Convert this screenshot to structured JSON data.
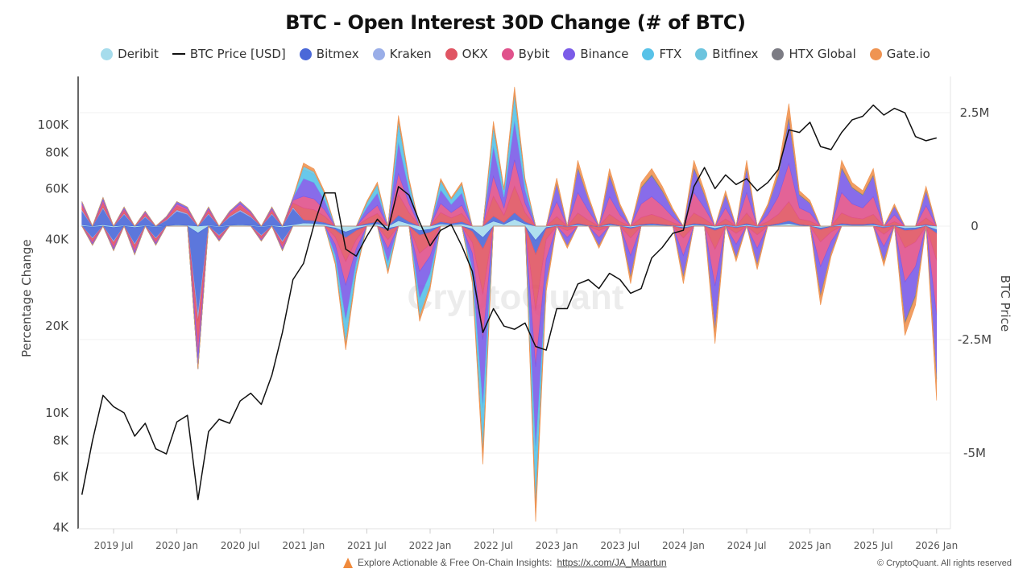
{
  "chart_data": {
    "type": "area",
    "title": "BTC - Open Interest 30D Change (# of BTC)",
    "ylabel_left": "Percentage Change",
    "ylabel_right": "BTC Price",
    "left_axis": {
      "scale": "log",
      "range": [
        4000,
        147000
      ],
      "ticks": [
        {
          "v": 4000,
          "label": "4K"
        },
        {
          "v": 6000,
          "label": "6K"
        },
        {
          "v": 8000,
          "label": "8K"
        },
        {
          "v": 10000,
          "label": "10K"
        },
        {
          "v": 20000,
          "label": "20K"
        },
        {
          "v": 40000,
          "label": "40K"
        },
        {
          "v": 60000,
          "label": "60K"
        },
        {
          "v": 80000,
          "label": "80K"
        },
        {
          "v": 100000,
          "label": "100K"
        }
      ]
    },
    "right_axis": {
      "scale": "linear",
      "unit": "M",
      "range": [
        -6.67,
        3.3
      ],
      "ticks": [
        {
          "v": 2.5,
          "label": "2.5M"
        },
        {
          "v": 0,
          "label": "0"
        },
        {
          "v": -2.5,
          "label": "-2.5M"
        },
        {
          "v": -5,
          "label": "-5M"
        }
      ]
    },
    "x_ticks": [
      {
        "date": "2019-07",
        "label": "2019 Jul"
      },
      {
        "date": "2020-01",
        "label": "2020 Jan"
      },
      {
        "date": "2020-07",
        "label": "2020 Jul"
      },
      {
        "date": "2021-01",
        "label": "2021 Jan"
      },
      {
        "date": "2021-07",
        "label": "2021 Jul"
      },
      {
        "date": "2022-01",
        "label": "2022 Jan"
      },
      {
        "date": "2022-07",
        "label": "2022 Jul"
      },
      {
        "date": "2023-01",
        "label": "2023 Jan"
      },
      {
        "date": "2023-07",
        "label": "2023 Jul"
      },
      {
        "date": "2024-01",
        "label": "2024 Jan"
      },
      {
        "date": "2024-07",
        "label": "2024 Jul"
      },
      {
        "date": "2025-01",
        "label": "2025 Jan"
      },
      {
        "date": "2025-07",
        "label": "2025 Jul"
      },
      {
        "date": "2026-01",
        "label": "2026 Jan"
      }
    ],
    "grid": "horizontal, faint",
    "legend_position": "top",
    "x": [
      "2019-04",
      "2019-05",
      "2019-06",
      "2019-07",
      "2019-08",
      "2019-09",
      "2019-10",
      "2019-11",
      "2019-12",
      "2020-01",
      "2020-02",
      "2020-03",
      "2020-04",
      "2020-05",
      "2020-06",
      "2020-07",
      "2020-08",
      "2020-09",
      "2020-10",
      "2020-11",
      "2020-12",
      "2021-01",
      "2021-02",
      "2021-03",
      "2021-04",
      "2021-05",
      "2021-06",
      "2021-07",
      "2021-08",
      "2021-09",
      "2021-10",
      "2021-11",
      "2021-12",
      "2022-01",
      "2022-02",
      "2022-03",
      "2022-04",
      "2022-05",
      "2022-06",
      "2022-07",
      "2022-08",
      "2022-09",
      "2022-10",
      "2022-11",
      "2022-12",
      "2023-01",
      "2023-02",
      "2023-03",
      "2023-04",
      "2023-05",
      "2023-06",
      "2023-07",
      "2023-08",
      "2023-09",
      "2023-10",
      "2023-11",
      "2023-12",
      "2024-01",
      "2024-02",
      "2024-03",
      "2024-04",
      "2024-05",
      "2024-06",
      "2024-07",
      "2024-08",
      "2024-09",
      "2024-10",
      "2024-11",
      "2024-12",
      "2025-01",
      "2025-02",
      "2025-03",
      "2025-04",
      "2025-05",
      "2025-06",
      "2025-07",
      "2025-08",
      "2025-09",
      "2025-10",
      "2025-11",
      "2025-12",
      "2026-01"
    ],
    "price": {
      "name": "BTC Price [USD]",
      "color": "#111111",
      "axis": "left",
      "values": [
        5200,
        8000,
        11500,
        10500,
        10000,
        8300,
        9200,
        7500,
        7200,
        9300,
        9800,
        5000,
        8600,
        9500,
        9200,
        11000,
        11700,
        10700,
        13500,
        19000,
        29000,
        33000,
        45000,
        58000,
        58000,
        37000,
        35000,
        41000,
        47000,
        43000,
        61000,
        57000,
        46000,
        38000,
        43000,
        45000,
        38000,
        31000,
        19000,
        23000,
        20000,
        19500,
        20500,
        17000,
        16500,
        23000,
        23000,
        28000,
        29000,
        27000,
        30500,
        29000,
        26000,
        27000,
        34500,
        37500,
        42000,
        43000,
        61000,
        71000,
        60000,
        67000,
        62000,
        65000,
        59000,
        63000,
        70000,
        96000,
        94000,
        102000,
        84000,
        82000,
        94000,
        104000,
        107000,
        117000,
        108000,
        114000,
        110000,
        91000,
        88000,
        90000
      ]
    },
    "series": [
      {
        "name": "Deribit",
        "color": "#a6dcec",
        "values": [
          0.03,
          -0.02,
          0.03,
          -0.03,
          0.02,
          -0.03,
          0.02,
          -0.02,
          0.01,
          0.03,
          0.02,
          -0.15,
          0.02,
          -0.02,
          0.02,
          0.03,
          0.02,
          -0.02,
          0.02,
          -0.03,
          0.03,
          0.07,
          0.06,
          0.04,
          -0.04,
          -0.13,
          -0.05,
          0.03,
          0.05,
          -0.05,
          0.12,
          0.05,
          -0.1,
          -0.07,
          0.05,
          0.03,
          0.05,
          -0.06,
          -0.25,
          0.11,
          0.04,
          0.15,
          0.05,
          -0.31,
          -0.03,
          0.02,
          -0.01,
          0.03,
          0.01,
          -0.01,
          0.03,
          0.01,
          -0.03,
          0.02,
          0.03,
          0.02,
          0.01,
          -0.03,
          0.03,
          0.02,
          -0.05,
          0.02,
          -0.02,
          0.03,
          -0.02,
          0.01,
          0.03,
          0.06,
          0.02,
          0.01,
          -0.04,
          -0.01,
          0.03,
          0.02,
          0.02,
          0.03,
          -0.02,
          0.01,
          -0.05,
          -0.04,
          0.02,
          -0.08
        ]
      },
      {
        "name": "Bitmex",
        "color": "#4a68d8",
        "values": [
          0.3,
          -0.24,
          0.36,
          -0.3,
          0.24,
          -0.36,
          0.18,
          -0.24,
          0.12,
          0.3,
          0.24,
          -1.8,
          0.24,
          -0.18,
          0.18,
          0.3,
          0.18,
          -0.18,
          0.24,
          -0.3,
          0.36,
          0.07,
          0.06,
          0.04,
          -0.04,
          -0.13,
          -0.05,
          0.03,
          0.05,
          -0.05,
          0.12,
          0.05,
          -0.1,
          -0.07,
          0.05,
          0.03,
          0.05,
          -0.06,
          -0.25,
          0.11,
          0.04,
          0.15,
          0.05,
          -0.31,
          -0.03,
          0.02,
          -0.01,
          0.03,
          0.01,
          -0.01,
          0.03,
          0.01,
          -0.03,
          0.02,
          0.03,
          0.02,
          0.01,
          -0.03,
          0.03,
          0.02,
          -0.05,
          0.02,
          -0.02,
          0.03,
          -0.02,
          0.01,
          0.03,
          0.06,
          0.02,
          0.01,
          -0.04,
          -0.01,
          0.03,
          0.02,
          0.02,
          0.03,
          -0.02,
          0.01,
          -0.05,
          -0.04,
          0.02,
          -0.08
        ]
      },
      {
        "name": "Kraken",
        "color": "#9aaee8",
        "values": [
          0.03,
          -0.02,
          0.03,
          -0.03,
          0.02,
          -0.03,
          0.02,
          -0.02,
          0.01,
          0.03,
          0.02,
          -0.15,
          0.02,
          -0.02,
          0.02,
          0.03,
          0.02,
          -0.02,
          0.02,
          -0.03,
          0.03,
          0,
          0,
          0,
          0,
          0,
          0,
          0,
          0,
          0,
          0,
          0,
          0,
          0,
          0,
          0,
          0,
          0,
          0,
          0,
          0,
          0,
          0,
          0,
          0,
          0,
          0,
          0,
          0,
          0,
          0,
          0,
          0,
          0,
          0,
          0,
          0,
          0,
          0,
          0,
          0,
          0,
          0,
          0,
          0,
          0,
          0,
          0,
          0,
          0,
          0,
          0,
          0,
          0,
          0,
          0,
          0,
          0,
          0,
          0,
          0,
          0
        ]
      },
      {
        "name": "OKX",
        "color": "#e05563",
        "values": [
          0.08,
          -0.06,
          0.09,
          -0.08,
          0.06,
          -0.09,
          0.05,
          -0.06,
          0.03,
          0.08,
          0.06,
          -0.45,
          0.06,
          -0.05,
          0.05,
          0.08,
          0.05,
          -0.05,
          0.06,
          -0.08,
          0.09,
          0.26,
          0.24,
          0.14,
          -0.16,
          -0.52,
          -0.2,
          0.1,
          0.18,
          -0.2,
          0.46,
          0.2,
          -0.4,
          -0.26,
          0.2,
          0.12,
          0.18,
          -0.24,
          -1.0,
          0.44,
          0.16,
          0.58,
          0.2,
          -1.24,
          -0.23,
          0.17,
          -0.08,
          0.23,
          0.11,
          -0.08,
          0.2,
          0.08,
          -0.2,
          0.15,
          0.2,
          0.14,
          0.06,
          -0.2,
          0.23,
          0.12,
          -0.41,
          0.12,
          -0.12,
          0.23,
          -0.15,
          0.08,
          0.2,
          0.42,
          0.12,
          0.09,
          -0.27,
          -0.11,
          0.23,
          0.15,
          0.12,
          0.2,
          -0.14,
          0.08,
          -0.38,
          -0.27,
          0.14,
          -0.6
        ]
      },
      {
        "name": "Bybit",
        "color": "#e0528c",
        "values": [
          0.05,
          -0.04,
          0.06,
          -0.05,
          0.04,
          -0.06,
          0.03,
          -0.04,
          0.02,
          0.05,
          0.04,
          -0.3,
          0.04,
          -0.03,
          0.03,
          0.05,
          0.03,
          -0.03,
          0.04,
          -0.05,
          0.06,
          0.26,
          0.24,
          0.14,
          -0.16,
          -0.52,
          -0.2,
          0.1,
          0.18,
          -0.2,
          0.46,
          0.2,
          -0.4,
          -0.26,
          0.2,
          0.12,
          0.18,
          -0.24,
          -1.0,
          0.44,
          0.16,
          0.58,
          0.2,
          -1.24,
          -0.45,
          0.33,
          -0.15,
          0.45,
          0.21,
          -0.15,
          0.39,
          0.15,
          -0.39,
          0.3,
          0.39,
          0.27,
          0.12,
          -0.39,
          0.45,
          0.24,
          -0.81,
          0.24,
          -0.24,
          0.45,
          -0.3,
          0.15,
          0.39,
          0.84,
          0.24,
          0.18,
          -0.54,
          -0.21,
          0.45,
          0.3,
          0.24,
          0.39,
          -0.27,
          0.15,
          -0.75,
          -0.54,
          0.27,
          -1.2
        ]
      },
      {
        "name": "Binance",
        "color": "#7b5ce8",
        "values": [
          0.05,
          -0.04,
          0.06,
          -0.05,
          0.04,
          -0.06,
          0.03,
          -0.04,
          0.02,
          0.05,
          0.04,
          -0.3,
          0.04,
          -0.03,
          0.03,
          0.05,
          0.03,
          -0.03,
          0.04,
          -0.05,
          0.06,
          0.39,
          0.36,
          0.21,
          -0.24,
          -0.78,
          -0.3,
          0.15,
          0.27,
          -0.3,
          0.69,
          0.3,
          -0.6,
          -0.39,
          0.3,
          0.18,
          0.27,
          -0.36,
          -1.5,
          0.66,
          0.24,
          0.87,
          0.3,
          -1.86,
          -0.53,
          0.39,
          -0.18,
          0.53,
          0.25,
          -0.18,
          0.46,
          0.18,
          -0.46,
          0.35,
          0.46,
          0.32,
          0.14,
          -0.46,
          0.53,
          0.28,
          -0.95,
          0.28,
          -0.28,
          0.53,
          -0.35,
          0.18,
          0.46,
          0.98,
          0.28,
          0.21,
          -0.63,
          -0.25,
          0.53,
          0.35,
          0.28,
          0.46,
          -0.32,
          0.18,
          -0.88,
          -0.63,
          0.32,
          -1.4
        ]
      },
      {
        "name": "FTX",
        "color": "#58c2e8",
        "values": [
          0,
          0,
          0,
          0,
          0,
          0,
          0,
          0,
          0,
          0,
          0,
          0,
          0,
          0,
          0,
          0,
          0,
          0,
          0,
          0,
          0,
          0.2,
          0.18,
          0.11,
          -0.12,
          -0.39,
          -0.15,
          0.08,
          0.14,
          -0.15,
          0.35,
          0.15,
          -0.3,
          -0.2,
          0.15,
          0.09,
          0.14,
          -0.18,
          -0.75,
          0.33,
          0.12,
          0.44,
          0.15,
          -0.93,
          0,
          0,
          0,
          0,
          0,
          0,
          0,
          0,
          0,
          0,
          0,
          0,
          0,
          0,
          0,
          0,
          0,
          0,
          0,
          0,
          0,
          0,
          0,
          0,
          0,
          0,
          0,
          0,
          0,
          0,
          0,
          0,
          0,
          0,
          0,
          0,
          0,
          0
        ]
      },
      {
        "name": "Bitfinex",
        "color": "#6cc4de",
        "values": [
          0,
          0,
          0,
          0,
          0,
          0,
          0,
          0,
          0,
          0,
          0,
          0,
          0,
          0,
          0,
          0,
          0,
          0,
          0,
          0,
          0,
          0.07,
          0.06,
          0.04,
          -0.04,
          -0.13,
          -0.05,
          0.03,
          0.05,
          -0.05,
          0.12,
          0.05,
          -0.1,
          -0.07,
          0.05,
          0.03,
          0.05,
          -0.06,
          -0.25,
          0.11,
          0.04,
          0.15,
          0.05,
          -0.31,
          0,
          0,
          0,
          0,
          0,
          0,
          0,
          0,
          0,
          0,
          0,
          0,
          0,
          0,
          0,
          0,
          0,
          0,
          0,
          0,
          0,
          0,
          0,
          0,
          0,
          0,
          0,
          0,
          0,
          0,
          0,
          0,
          0,
          0,
          0,
          0,
          0,
          0
        ]
      },
      {
        "name": "HTX Global",
        "color": "#7c7c84",
        "values": [
          0,
          0,
          0,
          0,
          0,
          0,
          0,
          0,
          0,
          0,
          0,
          0,
          0,
          0,
          0,
          0,
          0,
          0,
          0,
          0,
          0,
          0,
          0,
          0,
          0,
          0,
          0,
          0,
          0,
          0,
          0,
          0,
          0,
          0,
          0,
          0,
          0,
          0,
          0,
          0,
          0,
          0,
          0,
          0,
          -0.03,
          0.02,
          -0.01,
          0.03,
          0.01,
          -0.01,
          0.03,
          0.01,
          -0.03,
          0.02,
          0.03,
          0.02,
          0.01,
          -0.03,
          0.03,
          0.02,
          -0.05,
          0.02,
          -0.02,
          0.03,
          -0.02,
          0.01,
          0.03,
          0.06,
          0.02,
          0.01,
          -0.04,
          -0.01,
          0.03,
          0.02,
          0.02,
          0.03,
          -0.02,
          0.01,
          -0.05,
          -0.04,
          0.02,
          -0.08
        ]
      },
      {
        "name": "Gate.io",
        "color": "#ef9452",
        "values": [
          0,
          0,
          0,
          0,
          0,
          0,
          0,
          0,
          0,
          0,
          0,
          0,
          0,
          0,
          0,
          0,
          0,
          0,
          0,
          0,
          0,
          0.07,
          0.06,
          0.04,
          -0.04,
          -0.13,
          -0.05,
          0.03,
          0.05,
          -0.05,
          0.12,
          0.05,
          -0.1,
          -0.07,
          0.05,
          0.03,
          0.05,
          -0.06,
          -0.25,
          0.11,
          0.04,
          0.15,
          0.05,
          -0.31,
          -0.15,
          0.11,
          -0.05,
          0.15,
          0.07,
          -0.05,
          0.13,
          0.05,
          -0.13,
          0.1,
          0.13,
          0.09,
          0.04,
          -0.13,
          0.15,
          0.08,
          -0.27,
          0.08,
          -0.08,
          0.15,
          -0.1,
          0.05,
          0.13,
          0.28,
          0.08,
          0.06,
          -0.18,
          -0.07,
          0.15,
          0.1,
          0.08,
          0.13,
          -0.09,
          0.05,
          -0.25,
          -0.18,
          0.09,
          -0.4
        ]
      }
    ]
  },
  "legend": [
    {
      "label": "Deribit",
      "type": "dot",
      "color": "#a6dcec"
    },
    {
      "label": "BTC Price [USD]",
      "type": "line",
      "color": "#111111"
    },
    {
      "label": "Bitmex",
      "type": "dot",
      "color": "#4a68d8"
    },
    {
      "label": "Kraken",
      "type": "dot",
      "color": "#9aaee8"
    },
    {
      "label": "OKX",
      "type": "dot",
      "color": "#e05563"
    },
    {
      "label": "Bybit",
      "type": "dot",
      "color": "#e0528c"
    },
    {
      "label": "Binance",
      "type": "dot",
      "color": "#7b5ce8"
    },
    {
      "label": "FTX",
      "type": "dot",
      "color": "#58c2e8"
    },
    {
      "label": "Bitfinex",
      "type": "dot",
      "color": "#6cc4de"
    },
    {
      "label": "HTX Global",
      "type": "dot",
      "color": "#7c7c84"
    },
    {
      "label": "Gate.io",
      "type": "dot",
      "color": "#ef9452"
    }
  ],
  "watermark": "CryptoQuant",
  "footer": {
    "explore_text": "Explore Actionable & Free On-Chain Insights:",
    "link": "https://x.com/JA_Maartun",
    "copyright": "© CryptoQuant. All rights reserved"
  }
}
